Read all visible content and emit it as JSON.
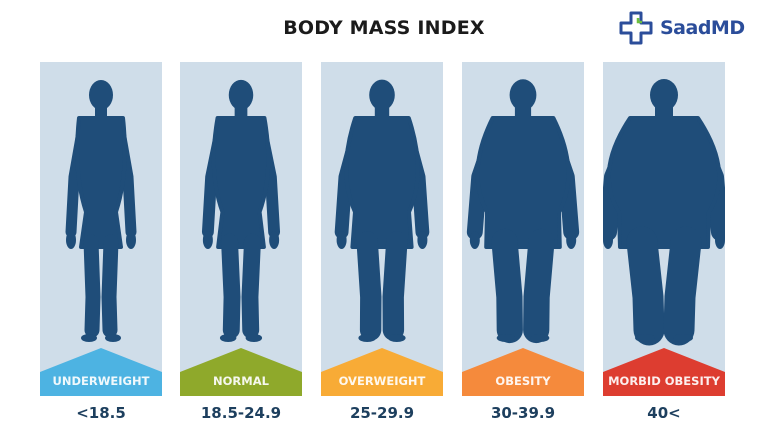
{
  "title": "BODY MASS INDEX",
  "logo": {
    "text": "SaadMD",
    "icon": "medical-cross-icon",
    "color": "#2b4d9a",
    "accent": "#6dbf3f"
  },
  "figure_color": "#1f4d79",
  "panel_color": "#cfdde9",
  "categories": [
    {
      "label": "UNDERWEIGHT",
      "range": "<18.5",
      "color": "#4db3e2"
    },
    {
      "label": "NORMAL",
      "range": "18.5-24.9",
      "color": "#8fa92b"
    },
    {
      "label": "OVERWEIGHT",
      "range": "25-29.9",
      "color": "#f8ab36"
    },
    {
      "label": "OBESITY",
      "range": "30-39.9",
      "color": "#f58a3c"
    },
    {
      "label": "MORBID OBESITY",
      "range": "40<",
      "color": "#dd3d30"
    }
  ]
}
